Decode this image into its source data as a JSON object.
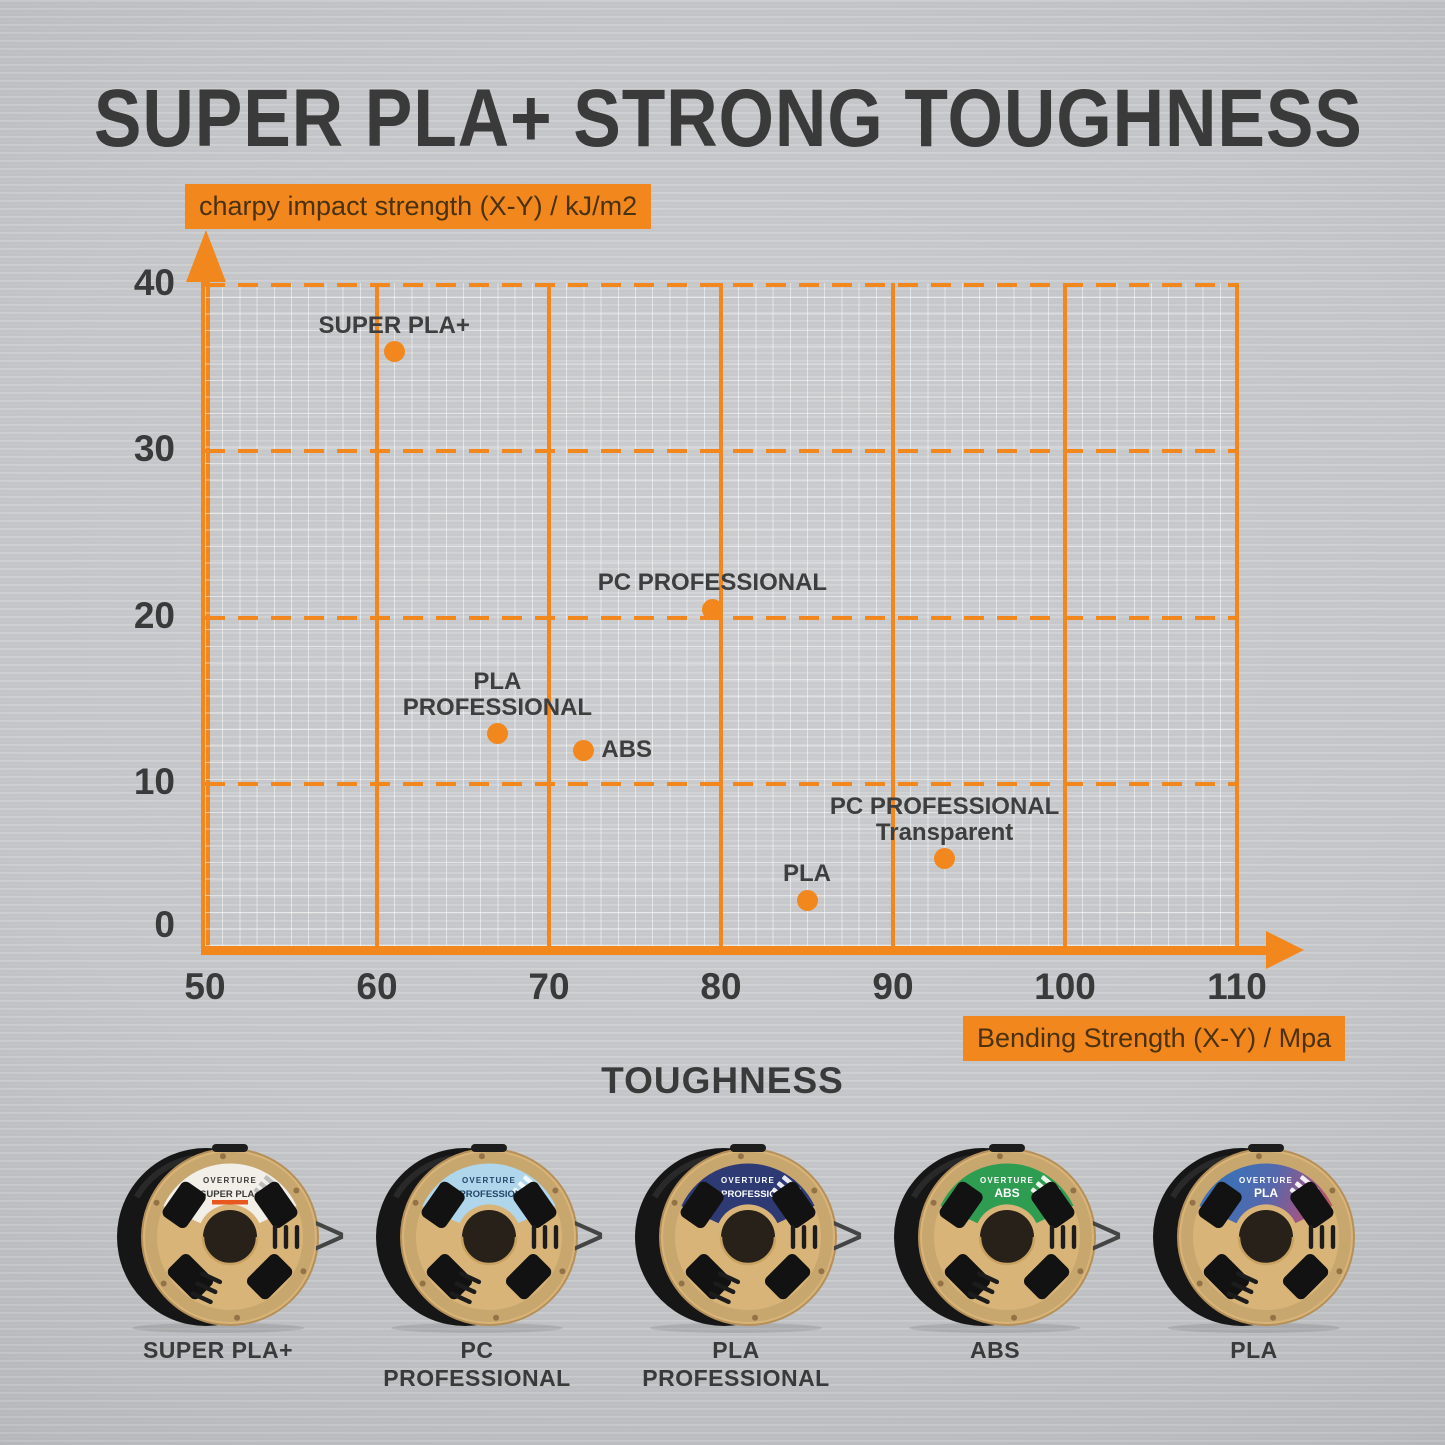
{
  "title": "SUPER PLA+ STRONG TOUGHNESS",
  "colors": {
    "accent_orange": "#F2871D",
    "ink": "#3A3A3A",
    "axis_box_text": "#4A3110",
    "background_gray": "#C5C7CA",
    "cardboard": "#D8B478",
    "filament_black": "#161616"
  },
  "chart_data": {
    "type": "scatter",
    "title": "SUPER PLA+ STRONG TOUGHNESS",
    "xlabel": "Bending Strength (X-Y) / Mpa",
    "ylabel": "charpy impact strength (X-Y) / kJ/m2",
    "xlim": [
      50,
      110
    ],
    "ylim": [
      0,
      40
    ],
    "x_ticks": [
      50,
      60,
      70,
      80,
      90,
      100,
      110
    ],
    "y_ticks": [
      0,
      10,
      20,
      30,
      40
    ],
    "grid": {
      "major_vertical": "solid orange",
      "major_horizontal": "dashed orange",
      "minor": "fine light 1-unit grid"
    },
    "legend": "none",
    "points": [
      {
        "name": "SUPER PLA+",
        "x": 61,
        "y": 36,
        "label_lines": [
          "SUPER PLA+"
        ],
        "label_pos": "above"
      },
      {
        "name": "PC PROFESSIONAL",
        "x": 79.5,
        "y": 20.5,
        "label_lines": [
          "PC PROFESSIONAL"
        ],
        "label_pos": "above"
      },
      {
        "name": "PLA PROFESSIONAL",
        "x": 67,
        "y": 13,
        "label_lines": [
          "PLA",
          "PROFESSIONAL"
        ],
        "label_pos": "above"
      },
      {
        "name": "ABS",
        "x": 72,
        "y": 12,
        "label_lines": [
          "ABS"
        ],
        "label_pos": "right"
      },
      {
        "name": "PC PROFESSIONAL Transparent",
        "x": 93,
        "y": 5.5,
        "label_lines": [
          "PC PROFESSIONAL",
          "Transparent"
        ],
        "label_pos": "above"
      },
      {
        "name": "PLA",
        "x": 85,
        "y": 3,
        "label_lines": [
          "PLA"
        ],
        "label_pos": "above"
      }
    ]
  },
  "comparison": {
    "heading": "TOUGHNESS",
    "separator": ">",
    "spools": [
      {
        "name": "SUPER PLA+",
        "caption_lines": [
          "SUPER PLA+"
        ],
        "brand": "OVERTURE",
        "band_color": "#F2EFE9",
        "band_text_color": "#3A3A3A",
        "accent": "#E8581E",
        "spec_fill": "#BDBDBD"
      },
      {
        "name": "PC PROFESSIONAL",
        "caption_lines": [
          "PC",
          "PROFESSIONAL"
        ],
        "brand": "OVERTURE",
        "band_color": "#AFD6EA",
        "band_text_color": "#24466B",
        "spec_fill": "#F2F8FB"
      },
      {
        "name": "PLA PROFESSIONAL",
        "caption_lines": [
          "PLA",
          "PROFESSIONAL"
        ],
        "brand": "OVERTURE",
        "band_color": "#2D3A73",
        "band_text_color": "#FFFFFF",
        "spec_fill": "#E8EAF2"
      },
      {
        "name": "ABS",
        "caption_lines": [
          "ABS"
        ],
        "brand": "OVERTURE",
        "band_color": "#2E9D51",
        "band_text_color": "#FFFFFF",
        "spec_fill": "#EAF5EC"
      },
      {
        "name": "PLA",
        "caption_lines": [
          "PLA"
        ],
        "brand": "OVERTURE",
        "band_gradient": [
          "#C05550",
          "#96588A",
          "#5468AC",
          "#3F70B6"
        ],
        "band_text_color": "#FFFFFF",
        "spec_fill": "#F0F0F5"
      }
    ]
  }
}
